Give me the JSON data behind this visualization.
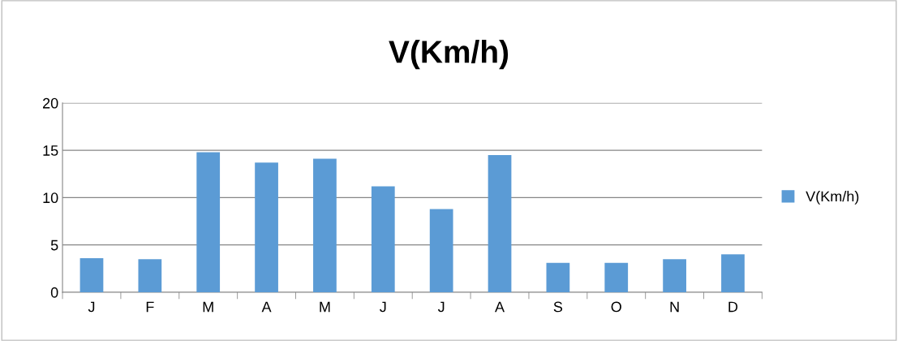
{
  "chart_data": {
    "type": "bar",
    "title": "V(Km/h)",
    "categories": [
      "J",
      "F",
      "M",
      "A",
      "M",
      "J",
      "J",
      "A",
      "S",
      "O",
      "N",
      "D"
    ],
    "series": [
      {
        "name": "V(Km/h)",
        "color": "#5b9bd5",
        "values": [
          3.6,
          3.5,
          14.8,
          13.7,
          14.1,
          11.2,
          8.8,
          14.5,
          3.1,
          3.1,
          3.5,
          4.0
        ]
      }
    ],
    "ylim": [
      0,
      20
    ],
    "yticks": [
      0,
      5,
      10,
      15,
      20
    ],
    "grid": "y",
    "legend": "right"
  }
}
